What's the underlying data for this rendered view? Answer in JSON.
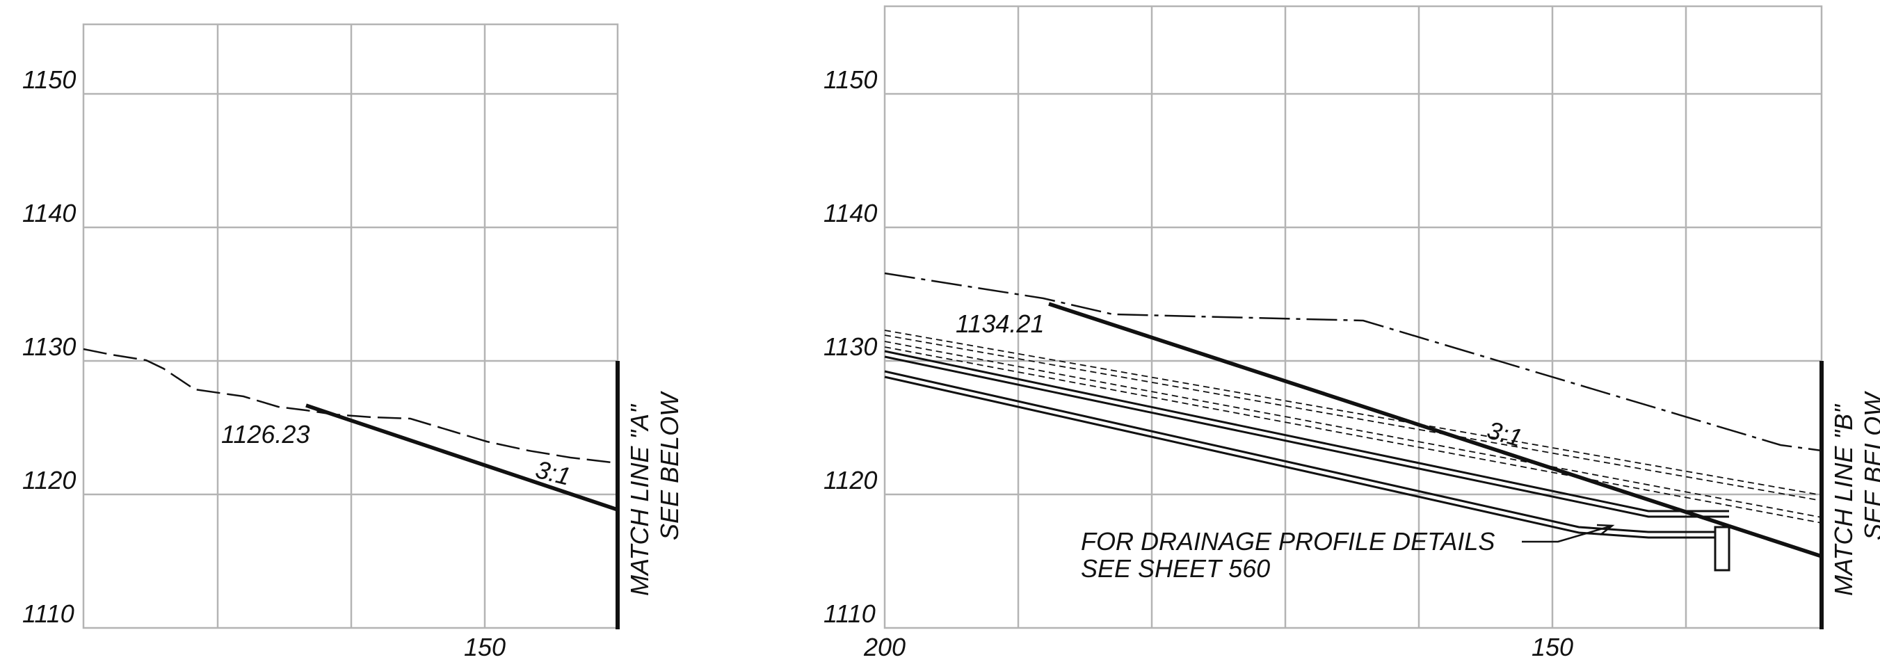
{
  "panel_a": {
    "y_ticks": [
      "1150",
      "1140",
      "1130",
      "1120",
      "1110"
    ],
    "x_ticks": [
      "150"
    ],
    "elevation_label": "1126.23",
    "slope_label": "3:1",
    "match_line": [
      "MATCH LINE \"A\"",
      "SEE BELOW"
    ]
  },
  "panel_b": {
    "y_ticks": [
      "1150",
      "1140",
      "1130",
      "1120",
      "1110"
    ],
    "x_ticks": [
      "200",
      "150"
    ],
    "elevation_label": "1134.21",
    "slope_label": "3:1",
    "note": [
      "FOR DRAINAGE PROFILE DETAILS",
      "SEE SHEET 560"
    ],
    "match_line": [
      "MATCH LINE \"B\"",
      "SEE BELOW"
    ]
  },
  "colors": {
    "grid": "#b4b4b4",
    "linework": "#111111"
  }
}
